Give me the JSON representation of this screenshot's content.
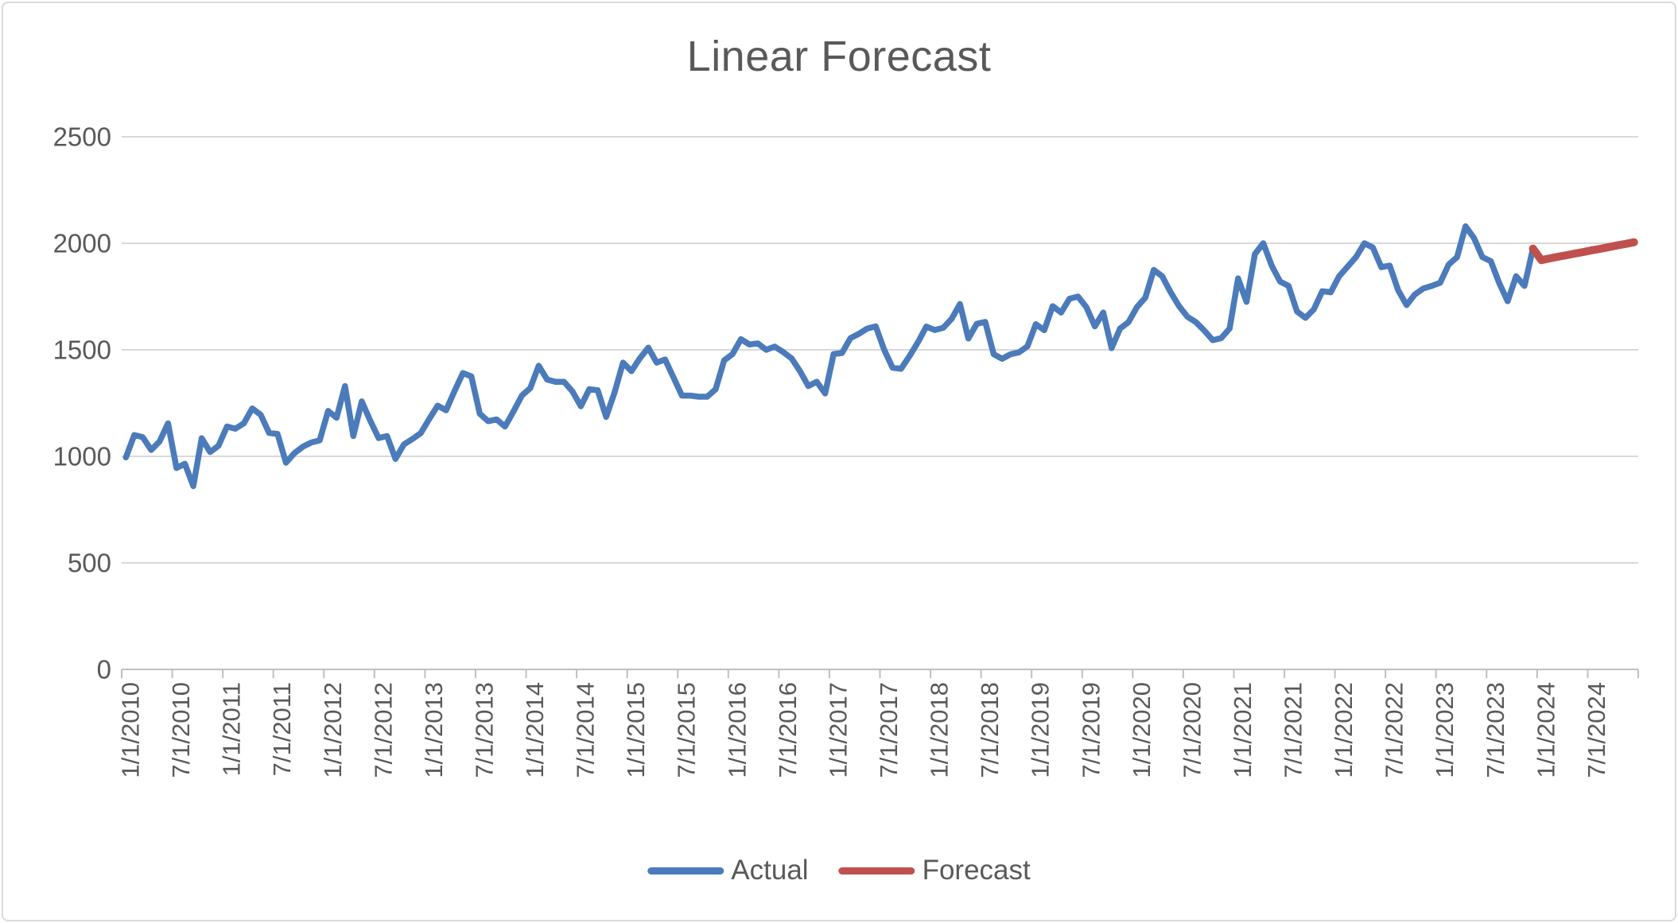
{
  "window": {
    "background": "#ffffff",
    "border_color": "#d9d9d9"
  },
  "chart": {
    "title": "Linear Forecast",
    "text_color": "#595959",
    "gridline_color": "#d9d9d9",
    "axis_color": "#bfbfbf",
    "legend": [
      {
        "label": "Actual",
        "color": "#4b7bba"
      },
      {
        "label": "Forecast",
        "color": "#c0504d"
      }
    ]
  },
  "chart_data": {
    "type": "line",
    "title": "Linear Forecast",
    "xlabel": "",
    "ylabel": "",
    "grid": true,
    "legend_position": "bottom",
    "y_axis": {
      "min": 0,
      "max": 2500,
      "tick_interval": 500,
      "tick_labels": [
        "0",
        "500",
        "1000",
        "1500",
        "2000",
        "2500"
      ]
    },
    "x_axis": {
      "start": "1/1/2010",
      "end": "12/1/2024",
      "total_months": 180,
      "label_every_months": 6,
      "tick_labels": [
        "1/1/2010",
        "7/1/2010",
        "1/1/2011",
        "7/1/2011",
        "1/1/2012",
        "7/1/2012",
        "1/1/2013",
        "7/1/2013",
        "1/1/2014",
        "7/1/2014",
        "1/1/2015",
        "7/1/2015",
        "1/1/2016",
        "7/1/2016",
        "1/1/2017",
        "7/1/2017",
        "1/1/2018",
        "7/1/2018",
        "1/1/2019",
        "7/1/2019",
        "1/1/2020",
        "7/1/2020",
        "1/1/2021",
        "7/1/2021",
        "1/1/2022",
        "7/1/2022",
        "1/1/2023",
        "7/1/2023",
        "1/1/2024",
        "7/1/2024"
      ]
    },
    "series": [
      {
        "name": "Actual",
        "color": "#4b7bba",
        "start_month_index": 0,
        "values": [
          995,
          1100,
          1090,
          1030,
          1070,
          1155,
          945,
          965,
          860,
          1085,
          1020,
          1050,
          1140,
          1130,
          1155,
          1225,
          1195,
          1110,
          1105,
          970,
          1015,
          1045,
          1065,
          1075,
          1213,
          1181,
          1330,
          1095,
          1258,
          1168,
          1086,
          1095,
          988,
          1056,
          1081,
          1109,
          1175,
          1238,
          1216,
          1306,
          1391,
          1375,
          1200,
          1165,
          1173,
          1140,
          1210,
          1285,
          1320,
          1425,
          1360,
          1350,
          1350,
          1305,
          1235,
          1315,
          1310,
          1185,
          1300,
          1440,
          1400,
          1460,
          1510,
          1440,
          1455,
          1370,
          1285,
          1285,
          1280,
          1280,
          1315,
          1450,
          1480,
          1550,
          1525,
          1530,
          1500,
          1515,
          1490,
          1460,
          1400,
          1330,
          1350,
          1295,
          1480,
          1485,
          1555,
          1575,
          1600,
          1610,
          1500,
          1416,
          1411,
          1470,
          1535,
          1609,
          1593,
          1603,
          1645,
          1715,
          1553,
          1622,
          1631,
          1479,
          1458,
          1479,
          1488,
          1516,
          1620,
          1592,
          1705,
          1675,
          1740,
          1750,
          1700,
          1610,
          1675,
          1508,
          1600,
          1630,
          1700,
          1745,
          1875,
          1845,
          1770,
          1705,
          1655,
          1630,
          1590,
          1545,
          1555,
          1600,
          1835,
          1725,
          1950,
          2000,
          1895,
          1820,
          1800,
          1680,
          1650,
          1690,
          1775,
          1770,
          1845,
          1890,
          1935,
          2000,
          1980,
          1888,
          1895,
          1780,
          1710,
          1760,
          1788,
          1800,
          1815,
          1900,
          1935,
          2080,
          2025,
          1935,
          1916,
          1813,
          1728,
          1845,
          1800,
          1975
        ]
      },
      {
        "name": "Forecast",
        "color": "#c0504d",
        "start_month_index": 167,
        "values": [
          1975,
          1921,
          1929,
          1937,
          1944,
          1952,
          1959,
          1967,
          1974,
          1982,
          1990,
          1997,
          2005
        ]
      }
    ]
  }
}
